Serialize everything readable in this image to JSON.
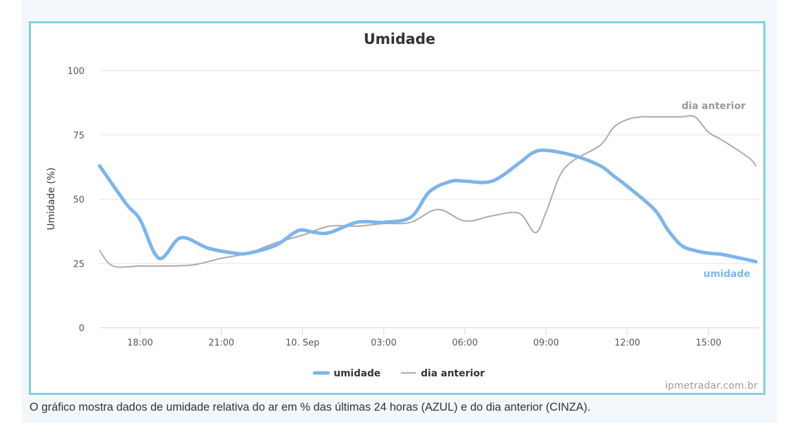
{
  "caption": "O gráfico mostra dados de umidade relativa do ar em % das últimas 24 horas (AZUL) e do dia anterior (CINZA).",
  "credit": "ipmetradar.com.br",
  "colors": {
    "umidade": "#7cb5ec",
    "dia_anterior": "#aaaaaa",
    "frame": "#7fd0e0"
  },
  "chart_data": {
    "type": "line",
    "title": "Umidade",
    "ylabel": "Umidade (%)",
    "xlabel": "",
    "ylim": [
      0,
      100
    ],
    "yticks": [
      0,
      25,
      50,
      75,
      100
    ],
    "xlim": [
      16.5,
      40.9
    ],
    "xticks": [
      {
        "x": 18,
        "label": "18:00"
      },
      {
        "x": 21,
        "label": "21:00"
      },
      {
        "x": 24,
        "label": "10. Sep"
      },
      {
        "x": 27,
        "label": "03:00"
      },
      {
        "x": 30,
        "label": "06:00"
      },
      {
        "x": 33,
        "label": "09:00"
      },
      {
        "x": 36,
        "label": "12:00"
      },
      {
        "x": 39,
        "label": "15:00"
      }
    ],
    "grid": true,
    "legend_position": "bottom-center",
    "series": [
      {
        "name": "umidade",
        "end_label": "umidade",
        "x": [
          16.5,
          17.5,
          18,
          18.7,
          19.5,
          20.5,
          21.5,
          22,
          23,
          23.7,
          24,
          24.5,
          25,
          26,
          26.8,
          27,
          28,
          28.7,
          29.5,
          30,
          31,
          32,
          32.5,
          33,
          34,
          35,
          35.5,
          36,
          37,
          37.5,
          38,
          38.5,
          39,
          39.5,
          40.2,
          40.75
        ],
        "values": [
          63,
          48,
          42,
          27,
          35,
          31,
          29,
          29,
          32,
          37,
          38,
          37,
          37,
          41,
          41,
          41,
          43,
          53,
          57,
          57,
          57,
          64,
          68,
          69,
          67,
          63,
          59,
          55,
          46,
          38,
          32,
          30,
          29,
          28.5,
          27,
          25.7
        ]
      },
      {
        "name": "dia anterior",
        "end_label": "dia anterior",
        "x": [
          16.5,
          17,
          18,
          19,
          20,
          21,
          22,
          23,
          24,
          25,
          26,
          27,
          28,
          29,
          30,
          31,
          32,
          32.6,
          33,
          33.5,
          34,
          35,
          35.5,
          36,
          36.5,
          37,
          37.5,
          38,
          38.5,
          39,
          39.5,
          40.5,
          40.75
        ],
        "values": [
          30,
          24,
          24,
          24,
          24.5,
          27,
          29,
          33,
          36,
          39.5,
          39.5,
          40.5,
          41,
          46,
          41.5,
          43.5,
          44.5,
          37,
          45,
          59,
          65,
          71,
          78,
          81,
          82,
          82,
          82,
          82,
          82,
          76,
          73,
          66,
          63
        ]
      }
    ]
  }
}
